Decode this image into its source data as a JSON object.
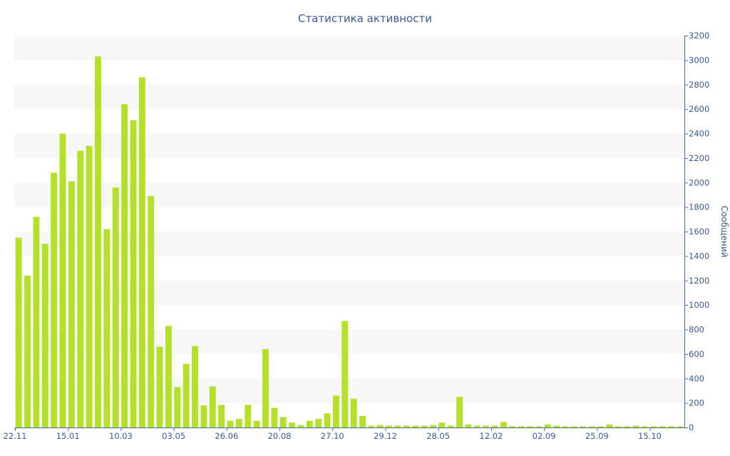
{
  "chart_data": {
    "type": "bar",
    "title": "Статистика активности",
    "ylabel": "Сообщений",
    "xlabel": "",
    "ylim": [
      0,
      3200
    ],
    "y_ticks": [
      0,
      200,
      400,
      600,
      800,
      1000,
      1200,
      1400,
      1600,
      1800,
      2000,
      2200,
      2400,
      2600,
      2800,
      3000,
      3200
    ],
    "y_axis_position": "right",
    "grid": "alternating horizontal bands",
    "legend": "none",
    "x_tick_labels": [
      {
        "label": "22.11",
        "index": 0
      },
      {
        "label": "15.01",
        "index": 6
      },
      {
        "label": "10.03",
        "index": 12
      },
      {
        "label": "03.05",
        "index": 18
      },
      {
        "label": "26.06",
        "index": 24
      },
      {
        "label": "20.08",
        "index": 30
      },
      {
        "label": "27.10",
        "index": 36
      },
      {
        "label": "29.12",
        "index": 42
      },
      {
        "label": "28.05",
        "index": 48
      },
      {
        "label": "12.02",
        "index": 54
      },
      {
        "label": "02.09",
        "index": 60
      },
      {
        "label": "25.09",
        "index": 66
      },
      {
        "label": "15.10",
        "index": 72
      }
    ],
    "series": [
      {
        "values": [
          1550,
          1240,
          1720,
          1500,
          2080,
          2400,
          2010,
          2260,
          2300,
          3030,
          1620,
          1960,
          2640,
          2510,
          2860,
          1890,
          660,
          830,
          330,
          520,
          665,
          180,
          335,
          185,
          55,
          70,
          185,
          55,
          640,
          160,
          85,
          40,
          20,
          55,
          70,
          115,
          260,
          870,
          235,
          95,
          15,
          20,
          15,
          15,
          15,
          15,
          15,
          20,
          40,
          15,
          250,
          25,
          15,
          15,
          15,
          45,
          10,
          10,
          10,
          10,
          25,
          15,
          10,
          10,
          10,
          10,
          10,
          25,
          10,
          10,
          15,
          10,
          10,
          10,
          10,
          10
        ]
      }
    ],
    "colors": {
      "bar": "#b5e02a",
      "text": "#3a5a94",
      "axis": "#4a6aa4",
      "band": "#f7f7f7"
    }
  }
}
